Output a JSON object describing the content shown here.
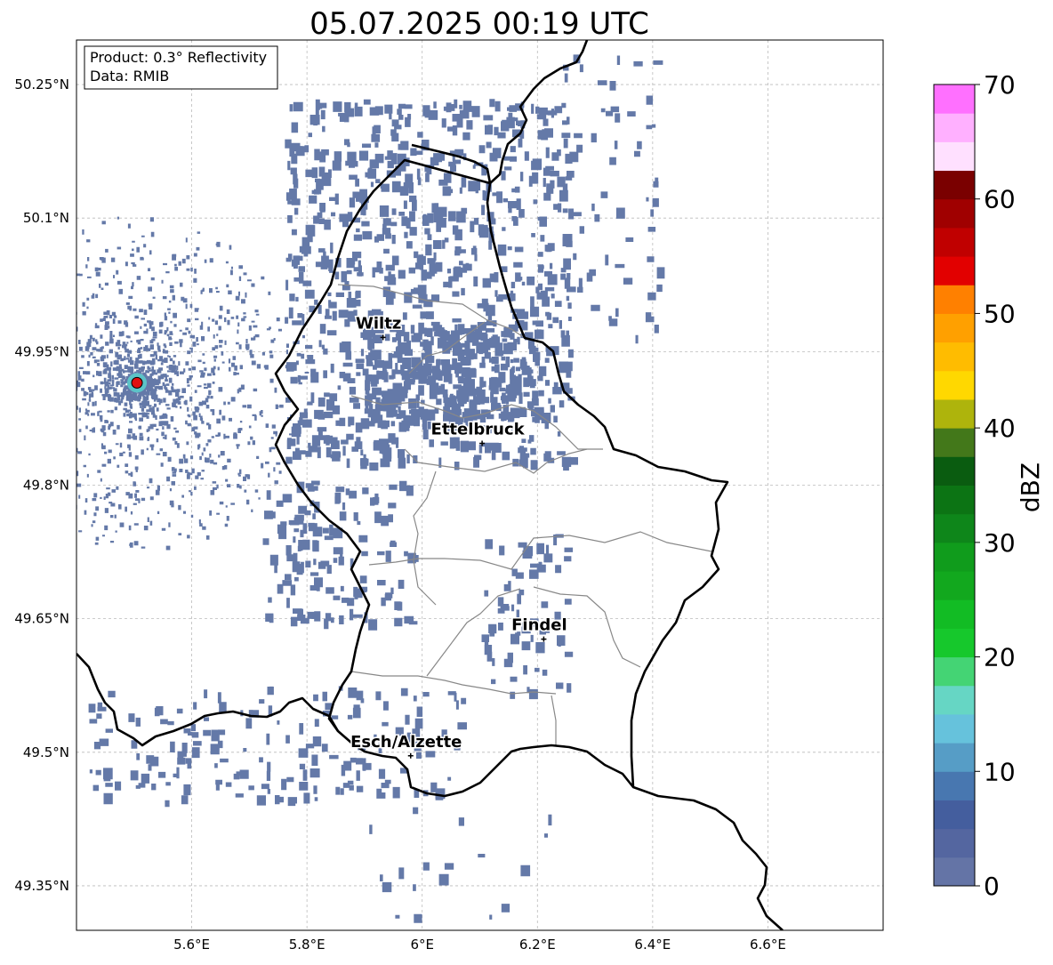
{
  "title": "05.07.2025 00:19 UTC",
  "info_box": {
    "product": "Product: 0.3° Reflectivity",
    "data": "Data: RMIB"
  },
  "map": {
    "lon_range": [
      5.4,
      6.8
    ],
    "lat_range": [
      49.3,
      50.3
    ],
    "lon_ticks": [
      {
        "value": 5.6,
        "label": "5.6°E"
      },
      {
        "value": 5.8,
        "label": "5.8°E"
      },
      {
        "value": 6.0,
        "label": "6°E"
      },
      {
        "value": 6.2,
        "label": "6.2°E"
      },
      {
        "value": 6.4,
        "label": "6.4°E"
      },
      {
        "value": 6.6,
        "label": "6.6°E"
      }
    ],
    "lat_ticks": [
      {
        "value": 50.25,
        "label": "50.25°N"
      },
      {
        "value": 50.1,
        "label": "50.1°N"
      },
      {
        "value": 49.95,
        "label": "49.95°N"
      },
      {
        "value": 49.8,
        "label": "49.8°N"
      },
      {
        "value": 49.65,
        "label": "49.65°N"
      },
      {
        "value": 49.5,
        "label": "49.5°N"
      },
      {
        "value": 49.35,
        "label": "49.35°N"
      }
    ],
    "grid": true,
    "radar_site": {
      "lon": 5.505,
      "lat": 49.915
    },
    "cities": [
      {
        "name": "Wiltz",
        "lon": 5.932,
        "lat": 49.966
      },
      {
        "name": "Ettelbruck",
        "lon": 6.104,
        "lat": 49.847
      },
      {
        "name": "Findel",
        "lon": 6.211,
        "lat": 49.627
      },
      {
        "name": "Esch/Alzette",
        "lon": 5.98,
        "lat": 49.496
      }
    ],
    "colors": {
      "border": "#000000",
      "cantons": "#888888",
      "echo": "#6479a8"
    }
  },
  "colorbar": {
    "label": "dBZ",
    "min": 0,
    "max": 70,
    "step": 2.5,
    "ticks": [
      "0",
      "10",
      "20",
      "30",
      "40",
      "50",
      "60",
      "70"
    ],
    "colors": [
      "#6474a6",
      "#5466a0",
      "#445e9e",
      "#4877b0",
      "#569dc6",
      "#66c2dc",
      "#66d6c4",
      "#44d474",
      "#16c82c",
      "#12bc24",
      "#12a81e",
      "#109c1c",
      "#0e861a",
      "#0c7414",
      "#0a5c10",
      "#43781a",
      "#aeb40c",
      "#ffd800",
      "#ffbc00",
      "#ffa000",
      "#ff8000",
      "#e20000",
      "#c00000",
      "#a00000",
      "#7a0000",
      "#ffe0ff",
      "#ffb0ff",
      "#ff70ff",
      "#ee33ee"
    ]
  }
}
